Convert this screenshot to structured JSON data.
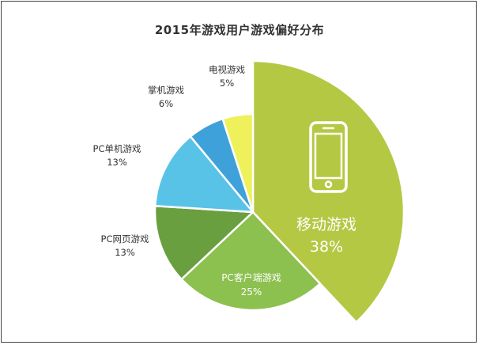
{
  "chart_data": {
    "type": "pie",
    "title": "2015年游戏用户游戏偏好分布",
    "categories": [
      "移动游戏",
      "PC客户端游戏",
      "PC网页游戏",
      "PC单机游戏",
      "掌机游戏",
      "电视游戏"
    ],
    "values": [
      38,
      25,
      13,
      13,
      6,
      5
    ],
    "value_labels": [
      "38%",
      "25%",
      "13%",
      "13%",
      "6%",
      "5%"
    ],
    "colors": [
      "#b5c843",
      "#8cc04f",
      "#6a9f40",
      "#58c3e6",
      "#3fa1d9",
      "#eef15a"
    ],
    "exploded_slice": "移动游戏",
    "mobile_slice_icon": "smartphone-icon"
  }
}
